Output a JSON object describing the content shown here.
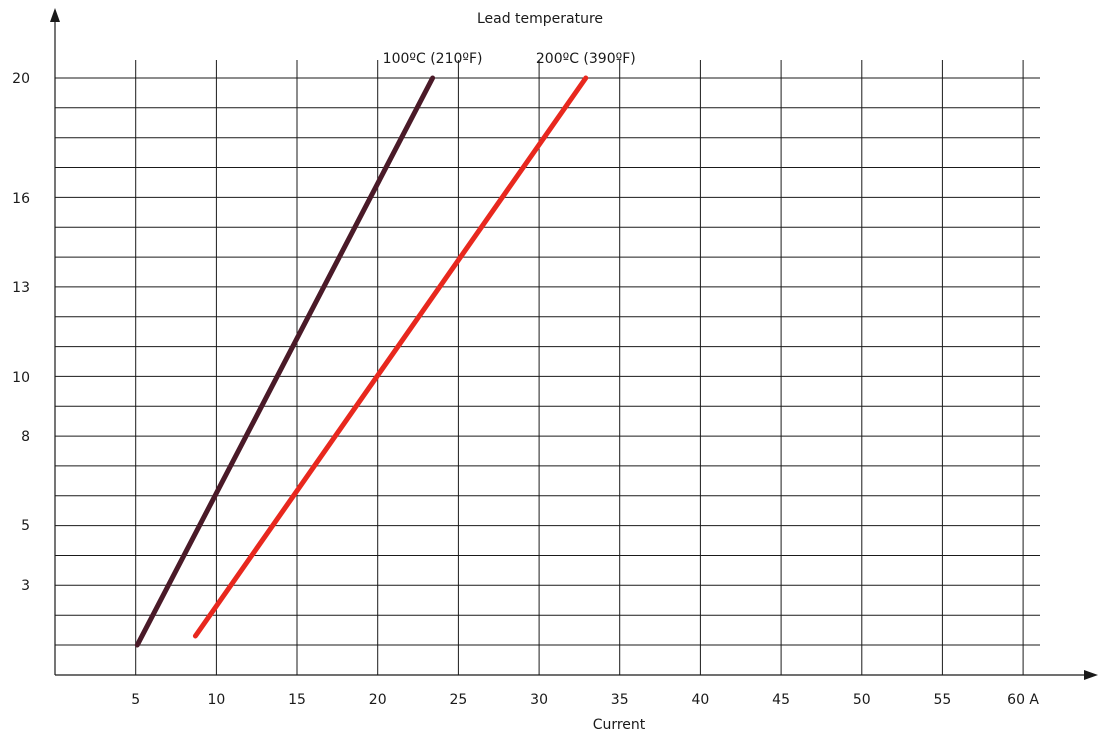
{
  "chart_data": {
    "type": "line",
    "title": "Lead temperature",
    "xlabel": "Current",
    "ylabel": "",
    "x_ticks": [
      {
        "value": 5,
        "label": "5"
      },
      {
        "value": 10,
        "label": "10"
      },
      {
        "value": 15,
        "label": "15"
      },
      {
        "value": 20,
        "label": "20"
      },
      {
        "value": 25,
        "label": "25"
      },
      {
        "value": 30,
        "label": "30"
      },
      {
        "value": 35,
        "label": "35"
      },
      {
        "value": 40,
        "label": "40"
      },
      {
        "value": 45,
        "label": "45"
      },
      {
        "value": 50,
        "label": "50"
      },
      {
        "value": 55,
        "label": "55"
      },
      {
        "value": 60,
        "label": "60 A"
      }
    ],
    "y_ticks": [
      {
        "value": 3,
        "label": "3"
      },
      {
        "value": 5,
        "label": "5"
      },
      {
        "value": 8,
        "label": "8"
      },
      {
        "value": 10,
        "label": "10"
      },
      {
        "value": 13,
        "label": "13"
      },
      {
        "value": 16,
        "label": "16"
      },
      {
        "value": 20,
        "label": "20"
      }
    ],
    "y_gridlines": [
      1,
      2,
      3,
      4,
      5,
      6,
      7,
      8,
      9,
      10,
      11,
      12,
      13,
      14,
      15,
      16,
      17,
      18,
      19,
      20,
      21
    ],
    "y_scale": "categorical (unevenly spaced rows)",
    "xlim": [
      0,
      60
    ],
    "grid": true,
    "series": [
      {
        "name": "100ºC (210ºF)",
        "color": "#4a1a28",
        "points": [
          {
            "x": 5.1,
            "y": 1
          },
          {
            "x": 23.4,
            "y": 20
          }
        ]
      },
      {
        "name": "200ºC (390ºF)",
        "color": "#e8281e",
        "points": [
          {
            "x": 8.7,
            "y": 1.3
          },
          {
            "x": 32.9,
            "y": 20
          }
        ]
      }
    ]
  }
}
